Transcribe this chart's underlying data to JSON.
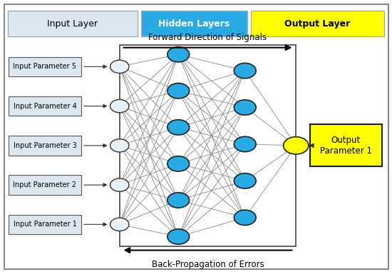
{
  "fig_width": 5.5,
  "fig_height": 3.81,
  "dpi": 100,
  "bg_color": "#ffffff",
  "header_input_label": "Input Layer",
  "header_hidden_label": "Hidden Layers",
  "header_output_label": "Output Layer",
  "header_input_bg": "#dce6f1",
  "header_hidden_bg": "#29aae2",
  "header_output_bg": "#ffff00",
  "forward_label": "Forward Direction of Signals",
  "backward_label": "Back-Propagation of Errors",
  "input_labels": [
    "Input Parameter 1",
    "Input Parameter 2",
    "Input Parameter 3",
    "Input Parameter 4",
    "Input Parameter 5"
  ],
  "input_box_bg": "#dce6f1",
  "input_node_color": "#e8f0f8",
  "input_node_edge": "#333333",
  "hidden1_n": 6,
  "hidden2_n": 5,
  "hidden_node_color": "#29aae2",
  "hidden_node_edge": "#222222",
  "output_node_color": "#ffff00",
  "output_node_edge": "#222222",
  "output_label": "Output\nParameter 1",
  "output_box_bg": "#ffff00",
  "output_box_edge": "#222222",
  "connection_color": "#888888",
  "connection_lw": 0.6
}
